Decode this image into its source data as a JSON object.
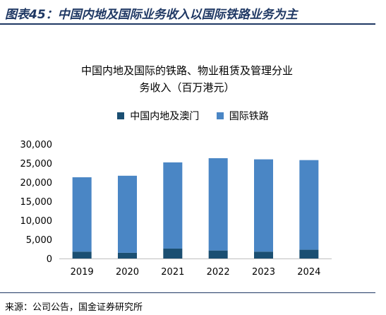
{
  "figure_title": "图表45：中国内地及国际业务收入以国际铁路业务为主",
  "source": "来源：公司公告，国金证券研究所",
  "chart_data": {
    "type": "bar",
    "stacked": true,
    "title_line1": "中国内地及国际的铁路、物业租赁及管理分业",
    "title_line2": "务收入（百万港元）",
    "categories": [
      "2019",
      "2020",
      "2021",
      "2022",
      "2023",
      "2024"
    ],
    "series": [
      {
        "name": "中国内地及澳门",
        "color": "#1b4f72",
        "values": [
          1800,
          1500,
          2600,
          2100,
          1800,
          2300
        ]
      },
      {
        "name": "国际铁路",
        "color": "#4a86c5",
        "values": [
          19500,
          20200,
          22600,
          24200,
          24200,
          23500
        ]
      }
    ],
    "ylim": [
      0,
      30000
    ],
    "yticks": [
      0,
      5000,
      10000,
      15000,
      20000,
      25000,
      30000
    ],
    "ytick_labels": [
      "0",
      "5,000",
      "10,000",
      "15,000",
      "20,000",
      "25,000",
      "30,000"
    ],
    "legend_position": "top"
  }
}
